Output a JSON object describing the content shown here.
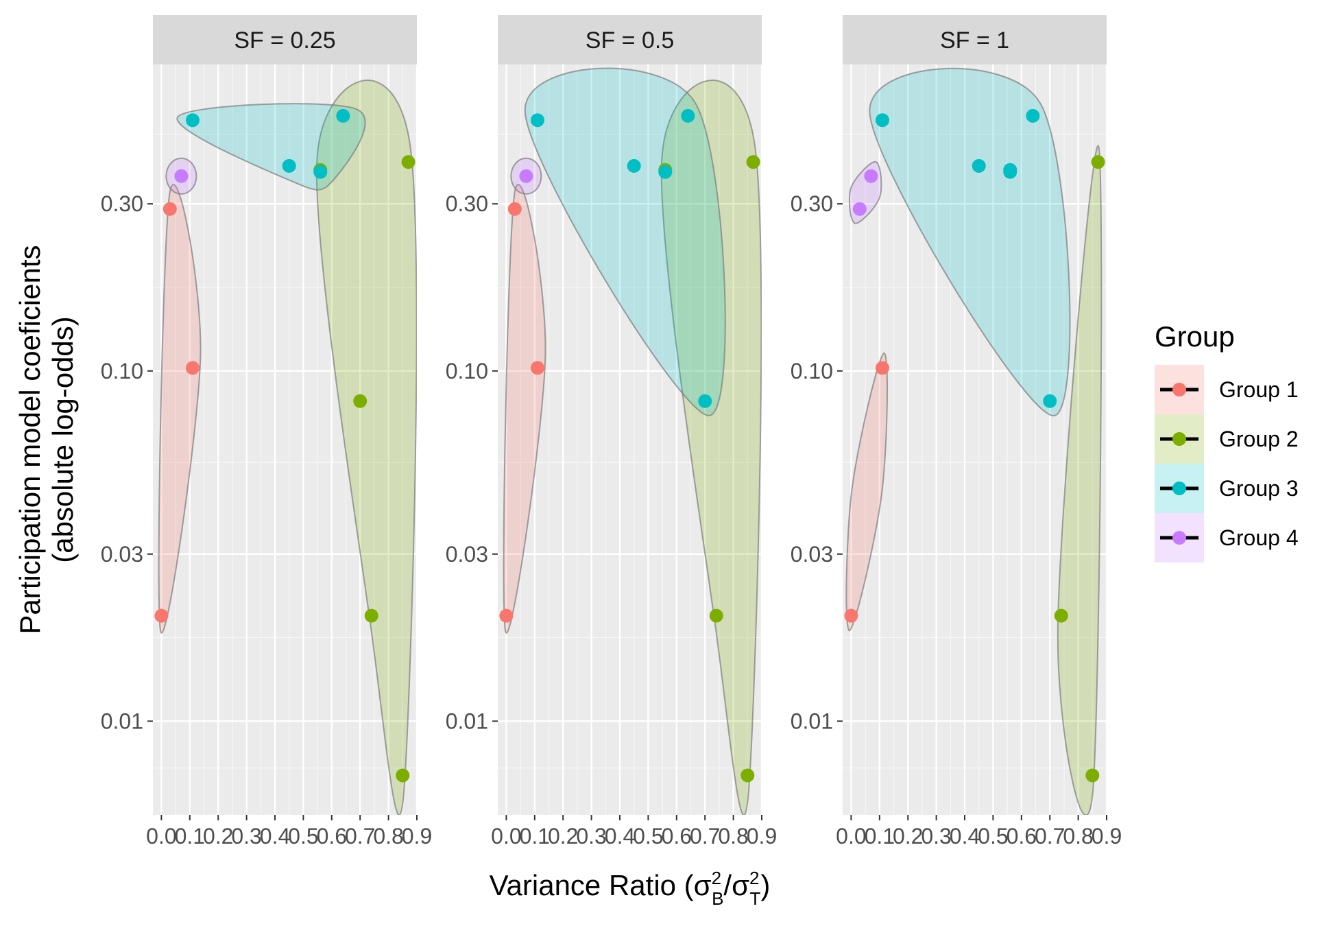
{
  "chart_data": {
    "type": "scatter",
    "xlabel": "Variance Ratio",
    "xlabel_math": {
      "sigma": "σ",
      "sub_b": "B",
      "sub_t": "T",
      "sup": "2"
    },
    "ylabel": "Participation model coeficients",
    "ylabel2": "(absolute log-odds)",
    "y_scale": "log10",
    "ylim": [
      0.0054,
      0.75
    ],
    "xlim": [
      -0.03,
      0.9
    ],
    "x_ticks": [
      0.0,
      0.1,
      0.2,
      0.3,
      0.4,
      0.5,
      0.6,
      0.7,
      0.8,
      0.9
    ],
    "x_tick_labels": [
      "0.0",
      "0.1",
      "0.2",
      "0.3",
      "0.4",
      "0.5",
      "0.6",
      "0.7",
      "0.8",
      "0.9"
    ],
    "y_ticks": [
      0.01,
      0.03,
      0.1,
      0.3
    ],
    "y_tick_labels": [
      "0.01",
      "0.03",
      "0.10",
      "0.30"
    ],
    "grid": true,
    "legend": {
      "title": "Group",
      "position": "right"
    },
    "groups": [
      {
        "name": "Group 1",
        "color": "#F8766D"
      },
      {
        "name": "Group 2",
        "color": "#7CAE00"
      },
      {
        "name": "Group 3",
        "color": "#00BFC4"
      },
      {
        "name": "Group 4",
        "color": "#C77CFF"
      }
    ],
    "panels": [
      {
        "label": "SF = 0.25",
        "points": [
          {
            "group": 1,
            "x": 0.0,
            "y": 0.02
          },
          {
            "group": 1,
            "x": 0.03,
            "y": 0.29
          },
          {
            "group": 1,
            "x": 0.11,
            "y": 0.102
          },
          {
            "group": 2,
            "x": 0.56,
            "y": 0.375
          },
          {
            "group": 2,
            "x": 0.87,
            "y": 0.395
          },
          {
            "group": 2,
            "x": 0.7,
            "y": 0.082
          },
          {
            "group": 2,
            "x": 0.74,
            "y": 0.02
          },
          {
            "group": 2,
            "x": 0.85,
            "y": 0.007
          },
          {
            "group": 3,
            "x": 0.11,
            "y": 0.52
          },
          {
            "group": 3,
            "x": 0.45,
            "y": 0.385
          },
          {
            "group": 3,
            "x": 0.56,
            "y": 0.37
          },
          {
            "group": 3,
            "x": 0.64,
            "y": 0.535
          },
          {
            "group": 4,
            "x": 0.07,
            "y": 0.36
          }
        ]
      },
      {
        "label": "SF = 0.5",
        "points": [
          {
            "group": 1,
            "x": 0.0,
            "y": 0.02
          },
          {
            "group": 1,
            "x": 0.03,
            "y": 0.29
          },
          {
            "group": 1,
            "x": 0.11,
            "y": 0.102
          },
          {
            "group": 2,
            "x": 0.56,
            "y": 0.375
          },
          {
            "group": 2,
            "x": 0.87,
            "y": 0.395
          },
          {
            "group": 2,
            "x": 0.74,
            "y": 0.02
          },
          {
            "group": 2,
            "x": 0.85,
            "y": 0.007
          },
          {
            "group": 3,
            "x": 0.11,
            "y": 0.52
          },
          {
            "group": 3,
            "x": 0.45,
            "y": 0.385
          },
          {
            "group": 3,
            "x": 0.56,
            "y": 0.37
          },
          {
            "group": 3,
            "x": 0.64,
            "y": 0.535
          },
          {
            "group": 3,
            "x": 0.7,
            "y": 0.082
          },
          {
            "group": 4,
            "x": 0.07,
            "y": 0.36
          }
        ]
      },
      {
        "label": "SF = 1",
        "points": [
          {
            "group": 1,
            "x": 0.0,
            "y": 0.02
          },
          {
            "group": 1,
            "x": 0.11,
            "y": 0.102
          },
          {
            "group": 2,
            "x": 0.87,
            "y": 0.395
          },
          {
            "group": 2,
            "x": 0.74,
            "y": 0.02
          },
          {
            "group": 2,
            "x": 0.85,
            "y": 0.007
          },
          {
            "group": 3,
            "x": 0.11,
            "y": 0.52
          },
          {
            "group": 3,
            "x": 0.45,
            "y": 0.385
          },
          {
            "group": 3,
            "x": 0.56,
            "y": 0.375
          },
          {
            "group": 3,
            "x": 0.56,
            "y": 0.37
          },
          {
            "group": 3,
            "x": 0.64,
            "y": 0.535
          },
          {
            "group": 3,
            "x": 0.7,
            "y": 0.082
          },
          {
            "group": 4,
            "x": 0.03,
            "y": 0.29
          },
          {
            "group": 4,
            "x": 0.07,
            "y": 0.36
          }
        ]
      }
    ]
  }
}
